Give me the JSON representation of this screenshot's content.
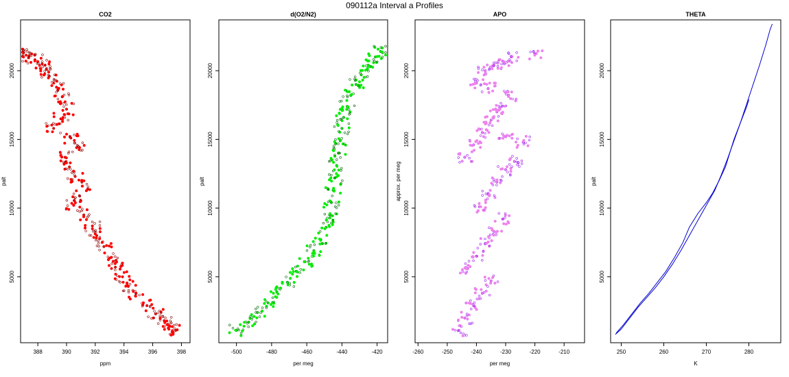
{
  "figure": {
    "title": "090112a   Interval a Profiles"
  },
  "chart_data": [
    {
      "type": "scatter",
      "title": "CO2",
      "xlabel": "ppm",
      "ylabel": "palt",
      "xlim": [
        386.8,
        398.6
      ],
      "ylim": [
        200,
        23700
      ],
      "xticks": [
        388,
        390,
        392,
        394,
        396,
        398
      ],
      "yticks": [
        5000,
        10000,
        15000,
        20000
      ],
      "color": "#ff0000",
      "outline_color": "#8b0000",
      "series": [
        {
          "x": [
            387.0,
            387.4,
            387.8,
            388.3,
            388.6,
            388.8,
            389.3,
            389.7,
            390.0,
            389.6,
            389.1,
            390.3,
            390.7,
            389.9,
            390.2,
            390.6,
            391.1,
            390.9,
            390.5,
            391.2,
            391.8,
            392.1,
            392.6,
            393.1,
            393.4,
            393.9,
            394.3,
            394.8,
            395.6,
            396.2,
            396.8,
            397.2,
            397.6
          ],
          "y": [
            21300,
            21100,
            20800,
            20500,
            20100,
            19600,
            18800,
            18100,
            17200,
            16500,
            15800,
            15100,
            14400,
            13700,
            13000,
            12300,
            11600,
            10900,
            10200,
            9500,
            8700,
            8000,
            7200,
            6400,
            5700,
            5000,
            4300,
            3600,
            2900,
            2300,
            1800,
            1400,
            1100
          ]
        }
      ]
    },
    {
      "type": "scatter",
      "title": "d(O2/N2)",
      "xlabel": "per meg",
      "ylabel": "palt",
      "xlim": [
        -510,
        -414
      ],
      "ylim": [
        200,
        23700
      ],
      "xticks": [
        -500,
        -480,
        -460,
        -440,
        -420
      ],
      "yticks": [
        5000,
        10000,
        15000,
        20000
      ],
      "color": "#00ee00",
      "outline_color": "#006400",
      "series": [
        {
          "x": [
            -500,
            -493,
            -488,
            -482,
            -477,
            -471,
            -466,
            -461,
            -456,
            -452,
            -449,
            -447,
            -446,
            -445,
            -444,
            -443,
            -442,
            -441,
            -440,
            -439,
            -437,
            -435,
            -432,
            -429,
            -425,
            -421,
            -418
          ],
          "y": [
            1100,
            1700,
            2400,
            3100,
            3900,
            4600,
            5400,
            6100,
            6900,
            7700,
            8600,
            9500,
            10400,
            11300,
            12200,
            13100,
            14000,
            14900,
            15800,
            16600,
            17400,
            18200,
            19000,
            19700,
            20400,
            21000,
            21400
          ]
        }
      ]
    },
    {
      "type": "scatter",
      "title": "APO",
      "xlabel": "per meg",
      "ylabel": "approx. per meg",
      "xlim": [
        -261,
        -203
      ],
      "ylim": [
        200,
        23700
      ],
      "xticks": [
        -260,
        -250,
        -240,
        -230,
        -220,
        -210
      ],
      "yticks": [
        5000,
        10000,
        15000,
        20000
      ],
      "color": "#ee82ee",
      "outline_color": "#a020f0",
      "series": [
        {
          "x": [
            -246,
            -244,
            -241,
            -238,
            -235,
            -243,
            -240,
            -237,
            -234,
            -231,
            -239,
            -236,
            -233,
            -230,
            -244,
            -241,
            -238,
            -235,
            -232,
            -229,
            -240,
            -237,
            -234,
            -231,
            -228,
            -236,
            -233,
            -230,
            -227,
            -224,
            -220
          ],
          "y": [
            1100,
            2000,
            2900,
            3800,
            4700,
            5600,
            6500,
            7400,
            8300,
            9200,
            10100,
            11000,
            11900,
            12800,
            13700,
            14600,
            15500,
            16400,
            17300,
            18200,
            19100,
            20000,
            20400,
            20700,
            21000,
            18700,
            17000,
            15200,
            13400,
            14800,
            21200
          ]
        }
      ]
    },
    {
      "type": "line",
      "title": "THETA",
      "xlabel": "K",
      "ylabel": "palt",
      "xlim": [
        247.5,
        287.5
      ],
      "ylim": [
        200,
        23700
      ],
      "xticks": [
        250,
        260,
        270,
        280
      ],
      "yticks": [
        5000,
        10000,
        15000,
        20000
      ],
      "color": "#0000cd",
      "series": [
        {
          "x": [
            248.6,
            250.0,
            252.0,
            254.0,
            256.0,
            258.0,
            260.0,
            262.0,
            264.0,
            266.0,
            268.0,
            270.0,
            272.0,
            273.5,
            275.0,
            276.5,
            278.0,
            279.5,
            281.0,
            282.5,
            284.0,
            285.0,
            285.5
          ],
          "y": [
            800,
            1200,
            2000,
            2800,
            3500,
            4200,
            5000,
            5900,
            6900,
            8000,
            9100,
            10200,
            11300,
            12400,
            13600,
            14900,
            16200,
            17600,
            19000,
            20400,
            21900,
            23000,
            23400
          ]
        },
        {
          "x": [
            248.8,
            250.5,
            252.5,
            254.5,
            256.5,
            258.5,
            260.5,
            262.5,
            264.5,
            266.0,
            268.0,
            270.0,
            271.5,
            273.0,
            274.5,
            275.5,
            276.5,
            277.5,
            278.5,
            279.5,
            280.0
          ],
          "y": [
            900,
            1500,
            2300,
            3100,
            3800,
            4600,
            5400,
            6400,
            7500,
            8600,
            9600,
            10400,
            11100,
            12000,
            13000,
            14000,
            15000,
            15800,
            16600,
            17400,
            17900
          ]
        }
      ]
    }
  ]
}
